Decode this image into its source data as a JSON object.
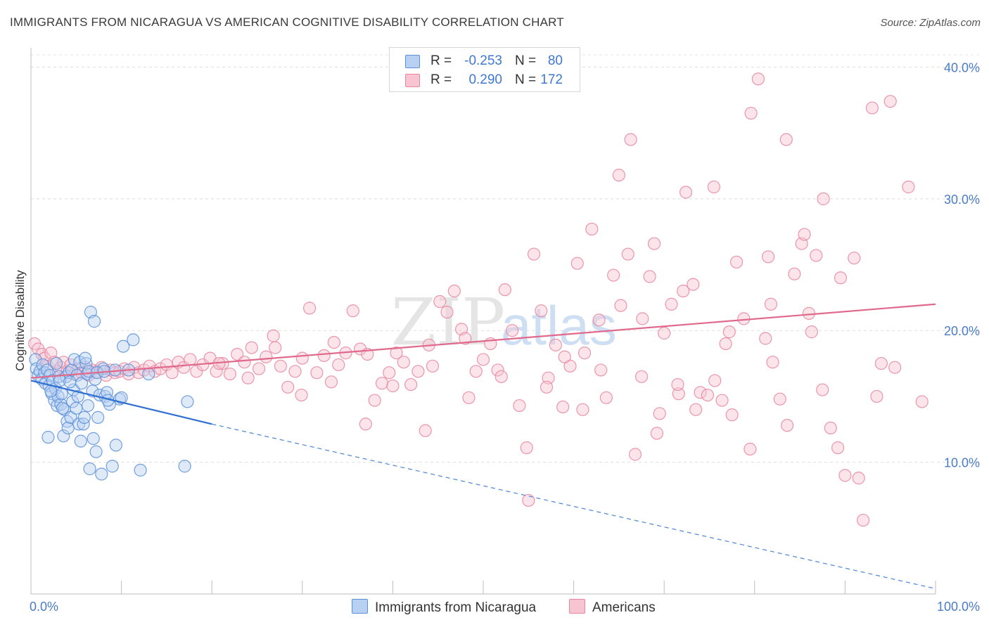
{
  "header": {
    "title": "IMMIGRANTS FROM NICARAGUA VS AMERICAN COGNITIVE DISABILITY CORRELATION CHART",
    "source": "Source: ZipAtlas.com"
  },
  "watermark": {
    "zip": "ZIP",
    "atlas": "atlas"
  },
  "legend": {
    "rows": [
      {
        "r_label": "R =",
        "r_value": "-0.253",
        "n_label": "N =",
        "n_value": "80",
        "color": "#5b8fd8",
        "fill": "#b8d0f2"
      },
      {
        "r_label": "R =",
        "r_value": "0.290",
        "n_label": "N =",
        "n_value": "172",
        "color": "#e8859f",
        "fill": "#f7c5d2"
      }
    ]
  },
  "bottom_legend": {
    "items": [
      {
        "label": "Immigrants from Nicaragua",
        "color": "#5b8fd8",
        "fill": "#b8d0f2"
      },
      {
        "label": "Americans",
        "color": "#e8859f",
        "fill": "#f7c5d2"
      }
    ]
  },
  "chart_data": {
    "type": "scatter",
    "title": "IMMIGRANTS FROM NICARAGUA VS AMERICAN COGNITIVE DISABILITY CORRELATION CHART",
    "xlabel": "",
    "ylabel": "Cognitive Disability",
    "xlim": [
      0,
      100
    ],
    "ylim": [
      0,
      42
    ],
    "x_tick_labels": [
      "0.0%",
      "100.0%"
    ],
    "y_ticks": [
      10,
      20,
      30,
      40
    ],
    "y_tick_labels": [
      "10.0%",
      "20.0%",
      "30.0%",
      "40.0%"
    ],
    "grid": true,
    "legend_position": "top-center",
    "series": [
      {
        "name": "Immigrants from Nicaragua",
        "color": "#5b8fd8",
        "fill": "#b8d0f2",
        "trend": {
          "x0": 0,
          "y0": 16.2,
          "x1": 20,
          "y1": 12.9,
          "dash_to_x": 100,
          "dash_to_y": 0.4
        },
        "points": [
          [
            0.5,
            17.8
          ],
          [
            0.6,
            17.1
          ],
          [
            0.8,
            16.6
          ],
          [
            1.0,
            16.9
          ],
          [
            1.2,
            16.3
          ],
          [
            1.3,
            17.4
          ],
          [
            1.5,
            16.8
          ],
          [
            1.6,
            16.0
          ],
          [
            1.8,
            17.0
          ],
          [
            2.0,
            15.8
          ],
          [
            2.1,
            16.6
          ],
          [
            2.3,
            15.2
          ],
          [
            2.4,
            16.2
          ],
          [
            2.6,
            14.7
          ],
          [
            2.7,
            15.6
          ],
          [
            2.9,
            14.3
          ],
          [
            3.0,
            15.0
          ],
          [
            3.1,
            16.5
          ],
          [
            3.3,
            14.4
          ],
          [
            3.4,
            15.2
          ],
          [
            3.6,
            12.0
          ],
          [
            3.7,
            14.0
          ],
          [
            3.9,
            16.5
          ],
          [
            4.0,
            13.1
          ],
          [
            4.1,
            12.6
          ],
          [
            4.2,
            16.8
          ],
          [
            4.4,
            13.4
          ],
          [
            4.5,
            17.0
          ],
          [
            4.6,
            14.6
          ],
          [
            4.7,
            15.5
          ],
          [
            4.8,
            17.8
          ],
          [
            5.0,
            14.1
          ],
          [
            5.1,
            16.6
          ],
          [
            5.2,
            15.0
          ],
          [
            5.3,
            12.9
          ],
          [
            5.4,
            17.6
          ],
          [
            5.5,
            11.6
          ],
          [
            5.6,
            16.0
          ],
          [
            5.8,
            12.9
          ],
          [
            5.9,
            13.4
          ],
          [
            6.1,
            17.5
          ],
          [
            6.2,
            16.7
          ],
          [
            6.3,
            14.3
          ],
          [
            6.5,
            9.5
          ],
          [
            6.6,
            21.4
          ],
          [
            6.8,
            15.4
          ],
          [
            6.9,
            11.8
          ],
          [
            7.1,
            16.3
          ],
          [
            7.2,
            10.8
          ],
          [
            7.4,
            13.4
          ],
          [
            7.6,
            15.1
          ],
          [
            7.8,
            9.1
          ],
          [
            8.0,
            17.1
          ],
          [
            8.2,
            15.0
          ],
          [
            8.4,
            15.3
          ],
          [
            8.7,
            14.4
          ],
          [
            9.0,
            9.7
          ],
          [
            9.4,
            11.3
          ],
          [
            9.8,
            14.8
          ],
          [
            10.2,
            18.8
          ],
          [
            10.8,
            17.0
          ],
          [
            11.3,
            19.3
          ],
          [
            12.1,
            9.4
          ],
          [
            13.0,
            16.7
          ],
          [
            1.9,
            11.9
          ],
          [
            2.2,
            15.4
          ],
          [
            2.8,
            17.5
          ],
          [
            3.2,
            16.2
          ],
          [
            3.5,
            14.1
          ],
          [
            4.3,
            16.1
          ],
          [
            6.0,
            17.9
          ],
          [
            6.4,
            16.9
          ],
          [
            7.0,
            20.7
          ],
          [
            7.3,
            16.8
          ],
          [
            8.1,
            16.9
          ],
          [
            8.5,
            14.7
          ],
          [
            9.3,
            17.0
          ],
          [
            10.0,
            14.9
          ],
          [
            17.3,
            14.6
          ],
          [
            17.0,
            9.7
          ]
        ]
      },
      {
        "name": "Americans",
        "color": "#e8859f",
        "fill": "#f7c5d2",
        "trend": {
          "x0": 0,
          "y0": 16.4,
          "x1": 100,
          "y1": 22.0
        },
        "points": [
          [
            0.4,
            19.0
          ],
          [
            0.8,
            18.6
          ],
          [
            1.2,
            18.2
          ],
          [
            1.5,
            17.9
          ],
          [
            1.8,
            17.3
          ],
          [
            2.2,
            18.3
          ],
          [
            2.6,
            17.6
          ],
          [
            3.0,
            16.9
          ],
          [
            3.3,
            17.2
          ],
          [
            3.6,
            17.6
          ],
          [
            4.0,
            16.9
          ],
          [
            4.4,
            17.4
          ],
          [
            4.8,
            16.7
          ],
          [
            5.2,
            17.1
          ],
          [
            5.6,
            16.8
          ],
          [
            6.0,
            17.2
          ],
          [
            6.4,
            16.6
          ],
          [
            6.8,
            17.0
          ],
          [
            7.3,
            16.9
          ],
          [
            7.8,
            17.2
          ],
          [
            8.3,
            16.6
          ],
          [
            8.8,
            17.0
          ],
          [
            9.3,
            16.8
          ],
          [
            9.8,
            16.9
          ],
          [
            10.3,
            17.1
          ],
          [
            10.8,
            16.7
          ],
          [
            11.4,
            17.2
          ],
          [
            11.9,
            16.8
          ],
          [
            12.5,
            17.0
          ],
          [
            13.1,
            17.3
          ],
          [
            13.7,
            16.9
          ],
          [
            14.3,
            17.1
          ],
          [
            15.0,
            17.4
          ],
          [
            15.6,
            16.8
          ],
          [
            16.3,
            17.6
          ],
          [
            16.9,
            17.2
          ],
          [
            17.6,
            17.8
          ],
          [
            18.3,
            16.9
          ],
          [
            19.0,
            17.4
          ],
          [
            19.8,
            17.9
          ],
          [
            20.5,
            16.9
          ],
          [
            21.2,
            17.5
          ],
          [
            22.0,
            16.7
          ],
          [
            22.8,
            18.2
          ],
          [
            23.6,
            17.6
          ],
          [
            24.4,
            18.7
          ],
          [
            25.2,
            17.1
          ],
          [
            26.0,
            18.0
          ],
          [
            26.8,
            19.6
          ],
          [
            27.6,
            17.3
          ],
          [
            28.4,
            15.7
          ],
          [
            29.2,
            16.9
          ],
          [
            30.0,
            17.9
          ],
          [
            30.8,
            21.7
          ],
          [
            31.6,
            16.8
          ],
          [
            32.4,
            18.1
          ],
          [
            33.2,
            16.1
          ],
          [
            34.0,
            17.4
          ],
          [
            34.8,
            18.3
          ],
          [
            35.6,
            21.5
          ],
          [
            36.4,
            18.6
          ],
          [
            37.2,
            18.2
          ],
          [
            38.0,
            14.7
          ],
          [
            38.8,
            16.0
          ],
          [
            39.6,
            16.8
          ],
          [
            40.4,
            18.3
          ],
          [
            41.2,
            17.6
          ],
          [
            42.0,
            15.9
          ],
          [
            42.8,
            16.9
          ],
          [
            43.6,
            12.4
          ],
          [
            44.4,
            17.3
          ],
          [
            45.2,
            22.2
          ],
          [
            46.0,
            21.4
          ],
          [
            46.8,
            23.0
          ],
          [
            47.6,
            20.1
          ],
          [
            48.4,
            14.9
          ],
          [
            49.2,
            16.9
          ],
          [
            50.0,
            17.8
          ],
          [
            50.8,
            19.0
          ],
          [
            51.6,
            17.0
          ],
          [
            52.4,
            23.1
          ],
          [
            53.2,
            20.0
          ],
          [
            54.0,
            14.3
          ],
          [
            54.8,
            11.1
          ],
          [
            55.6,
            25.8
          ],
          [
            56.4,
            21.5
          ],
          [
            57.2,
            16.4
          ],
          [
            58.0,
            18.9
          ],
          [
            58.8,
            14.2
          ],
          [
            59.6,
            17.3
          ],
          [
            60.4,
            25.1
          ],
          [
            61.2,
            18.3
          ],
          [
            62.0,
            27.7
          ],
          [
            62.8,
            20.8
          ],
          [
            63.6,
            14.9
          ],
          [
            64.4,
            24.2
          ],
          [
            65.2,
            21.9
          ],
          [
            66.0,
            25.8
          ],
          [
            66.8,
            10.6
          ],
          [
            67.6,
            20.9
          ],
          [
            68.4,
            24.1
          ],
          [
            69.2,
            12.2
          ],
          [
            70.0,
            19.8
          ],
          [
            70.8,
            22.0
          ],
          [
            71.6,
            15.2
          ],
          [
            72.4,
            30.5
          ],
          [
            73.2,
            23.5
          ],
          [
            74.0,
            15.3
          ],
          [
            74.8,
            15.1
          ],
          [
            75.6,
            16.2
          ],
          [
            76.4,
            14.7
          ],
          [
            77.2,
            19.9
          ],
          [
            78.0,
            25.2
          ],
          [
            78.8,
            20.9
          ],
          [
            79.6,
            36.5
          ],
          [
            80.4,
            39.1
          ],
          [
            81.2,
            19.4
          ],
          [
            82.0,
            17.6
          ],
          [
            82.8,
            14.8
          ],
          [
            83.6,
            12.8
          ],
          [
            84.4,
            24.3
          ],
          [
            85.2,
            26.6
          ],
          [
            86.0,
            21.3
          ],
          [
            86.8,
            25.7
          ],
          [
            87.6,
            30.0
          ],
          [
            88.4,
            12.6
          ],
          [
            89.2,
            11.1
          ],
          [
            90.0,
            9.0
          ],
          [
            91.0,
            25.5
          ],
          [
            92.0,
            5.6
          ],
          [
            93.0,
            36.9
          ],
          [
            94.0,
            17.5
          ],
          [
            95.0,
            37.4
          ],
          [
            37.0,
            12.9
          ],
          [
            40.0,
            15.8
          ],
          [
            44.0,
            18.9
          ],
          [
            48.0,
            19.4
          ],
          [
            52.0,
            16.5
          ],
          [
            55.0,
            7.1
          ],
          [
            57.0,
            15.7
          ],
          [
            59.0,
            18.0
          ],
          [
            61.0,
            14.0
          ],
          [
            63.0,
            17.0
          ],
          [
            65.0,
            31.8
          ],
          [
            67.5,
            16.5
          ],
          [
            69.5,
            13.7
          ],
          [
            71.5,
            15.9
          ],
          [
            73.5,
            14.0
          ],
          [
            75.5,
            30.9
          ],
          [
            77.5,
            13.6
          ],
          [
            79.5,
            11.0
          ],
          [
            81.5,
            25.6
          ],
          [
            83.5,
            34.5
          ],
          [
            85.5,
            27.3
          ],
          [
            87.5,
            15.5
          ],
          [
            89.5,
            24.0
          ],
          [
            91.5,
            8.8
          ],
          [
            93.5,
            15.0
          ],
          [
            95.5,
            17.2
          ],
          [
            97.0,
            30.9
          ],
          [
            98.5,
            14.6
          ],
          [
            66.3,
            34.5
          ],
          [
            68.9,
            26.6
          ],
          [
            72.1,
            23.0
          ],
          [
            76.8,
            19.0
          ],
          [
            81.8,
            22.0
          ],
          [
            86.3,
            19.9
          ],
          [
            20.8,
            17.5
          ],
          [
            24.0,
            16.4
          ],
          [
            27.0,
            18.7
          ],
          [
            29.9,
            15.1
          ],
          [
            33.5,
            19.1
          ]
        ]
      }
    ]
  }
}
